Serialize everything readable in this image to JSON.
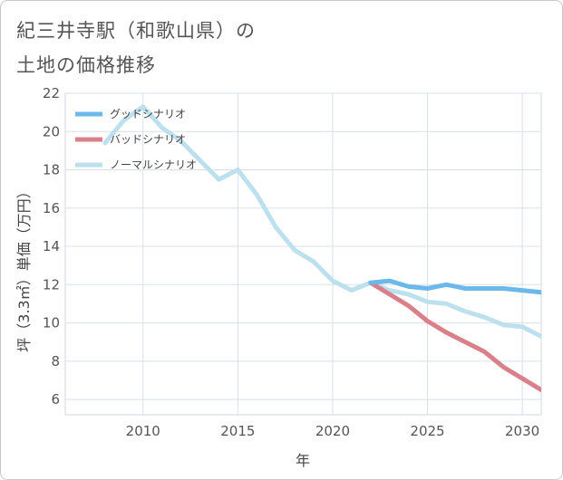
{
  "title": {
    "line1": "紀三井寺駅（和歌山県）の",
    "line2": "土地の価格推移"
  },
  "chart_data": {
    "type": "line",
    "xlabel": "年",
    "ylabel": "坪（3.3㎡）単価（万円）",
    "xlim": [
      2005.9,
      2031
    ],
    "ylim": [
      5.2,
      22
    ],
    "xticks": [
      2010,
      2015,
      2020,
      2025,
      2030
    ],
    "yticks": [
      6,
      8,
      10,
      12,
      14,
      16,
      18,
      20,
      22
    ],
    "grid": true,
    "legend_position": "top-left",
    "series": [
      {
        "name": "グッドシナリオ",
        "color": "#6bb8ea",
        "x": [
          2022,
          2023,
          2024,
          2025,
          2026,
          2027,
          2028,
          2029,
          2030,
          2031
        ],
        "y": [
          12.1,
          12.2,
          11.9,
          11.8,
          12.0,
          11.8,
          11.8,
          11.8,
          11.7,
          11.6
        ]
      },
      {
        "name": "バッドシナリオ",
        "color": "#d9808a",
        "x": [
          2022,
          2023,
          2024,
          2025,
          2026,
          2027,
          2028,
          2029,
          2030,
          2031
        ],
        "y": [
          12.1,
          11.5,
          10.9,
          10.1,
          9.5,
          9.0,
          8.5,
          7.7,
          7.1,
          6.5
        ]
      },
      {
        "name": "ノーマルシナリオ",
        "color": "#bde0ee",
        "x": [
          2008,
          2009,
          2010,
          2011,
          2012,
          2013,
          2014,
          2015,
          2016,
          2017,
          2018,
          2019,
          2020,
          2021,
          2022,
          2023,
          2024,
          2025,
          2026,
          2027,
          2028,
          2029,
          2030,
          2031
        ],
        "y": [
          19.4,
          20.6,
          21.3,
          20.2,
          19.5,
          18.5,
          17.5,
          18.0,
          16.7,
          15.0,
          13.8,
          13.2,
          12.2,
          11.7,
          12.1,
          11.7,
          11.5,
          11.1,
          11.0,
          10.6,
          10.3,
          9.9,
          9.8,
          9.3
        ]
      }
    ]
  }
}
